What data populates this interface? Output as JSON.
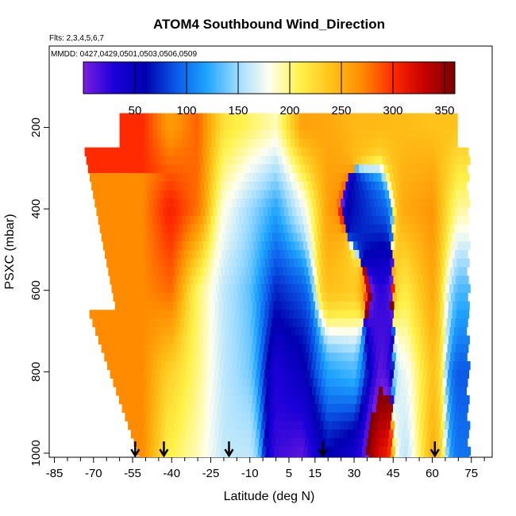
{
  "chart_data": {
    "type": "heatmap",
    "title": "ATOM4 Southbound Wind_Direction",
    "subtitle_flights": "Flts: 2,3,4,5,6,7",
    "subtitle_dates": "MMDD: 0427,0429,0501,0503,0506,0509",
    "xlabel": "Latitude (deg N)",
    "ylabel": "PSXC (mbar)",
    "xlim": [
      -87,
      83
    ],
    "ylim": [
      1010,
      0
    ],
    "x_tick_labels": [
      "-85",
      "-70",
      "-55",
      "-40",
      "-25",
      "-10",
      "5",
      "15",
      "30",
      "45",
      "60",
      "75"
    ],
    "x_tick_values": [
      -85,
      -70,
      -55,
      -40,
      -25,
      -10,
      5,
      15,
      30,
      45,
      60,
      75
    ],
    "y_tick_labels": [
      "200",
      "400",
      "600",
      "800",
      "1000"
    ],
    "y_tick_values": [
      200,
      400,
      600,
      800,
      1000
    ],
    "colorbar": {
      "range": [
        0,
        360
      ],
      "tick_labels": [
        "50",
        "100",
        "150",
        "200",
        "250",
        "300",
        "350"
      ],
      "tick_values": [
        50,
        100,
        150,
        200,
        250,
        300,
        350
      ],
      "colors": [
        "#7a1fe0",
        "#1a00d8",
        "#0000b0",
        "#0a5ae8",
        "#1fa5ff",
        "#9fdcff",
        "#fffff0",
        "#fff24a",
        "#ffc21a",
        "#ff8c00",
        "#ff2a00",
        "#c80000",
        "#7a0000"
      ]
    },
    "field": {
      "profile_latitudes": [
        -40,
        -30,
        -20,
        -10,
        0,
        10,
        20,
        30,
        40,
        50,
        60,
        70
      ],
      "levels_mbar": [
        200,
        400,
        600,
        800,
        1000
      ],
      "direction_deg": [
        [
          262,
          283,
          220,
          205,
          190,
          258,
          255,
          245,
          245,
          243,
          240,
          240
        ],
        [
          305,
          278,
          182,
          150,
          120,
          172,
          260,
          65,
          90,
          255,
          265,
          195
        ],
        [
          280,
          205,
          160,
          135,
          72,
          90,
          240,
          235,
          25,
          215,
          255,
          130
        ],
        [
          230,
          200,
          160,
          140,
          30,
          50,
          120,
          130,
          10,
          175,
          240,
          90
        ],
        [
          210,
          190,
          160,
          160,
          20,
          10,
          60,
          40,
          320,
          160,
          250,
          100
        ]
      ]
    },
    "profile_markers_lat": [
      -54,
      -43,
      -18,
      18,
      61
    ]
  }
}
